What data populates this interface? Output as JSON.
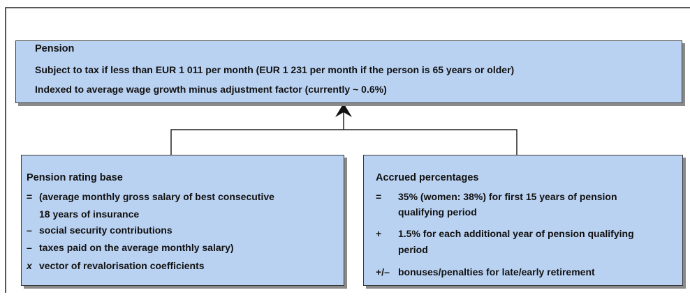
{
  "pension": {
    "title": "Pension",
    "lines": [
      "Subject to tax if less than EUR 1 011 per month (EUR 1 231 per month if the person is 65 years or older)",
      "Indexed to average wage growth minus adjustment factor (currently ~ 0.6%)"
    ]
  },
  "rating_base": {
    "title": "Pension rating base",
    "items": [
      {
        "symbol": "=",
        "lines": [
          "(average monthly gross salary of best consecutive",
          "18 years of insurance"
        ]
      },
      {
        "symbol": "–",
        "lines": [
          "social security contributions"
        ]
      },
      {
        "symbol": "–",
        "lines": [
          "taxes paid on the average monthly salary)"
        ]
      },
      {
        "symbol": "x",
        "lines": [
          "vector of revalorisation coefficients"
        ]
      }
    ]
  },
  "accrued": {
    "title": "Accrued percentages",
    "items": [
      {
        "symbol": "=",
        "lines": [
          "35% (women: 38%) for first 15 years of pension",
          "qualifying period"
        ]
      },
      {
        "symbol": "+",
        "lines": [
          "1.5% for each additional year of pension qualifying",
          "period"
        ]
      },
      {
        "symbol": "+/–",
        "lines": [
          "bonuses/penalties for late/early retirement"
        ]
      }
    ]
  }
}
